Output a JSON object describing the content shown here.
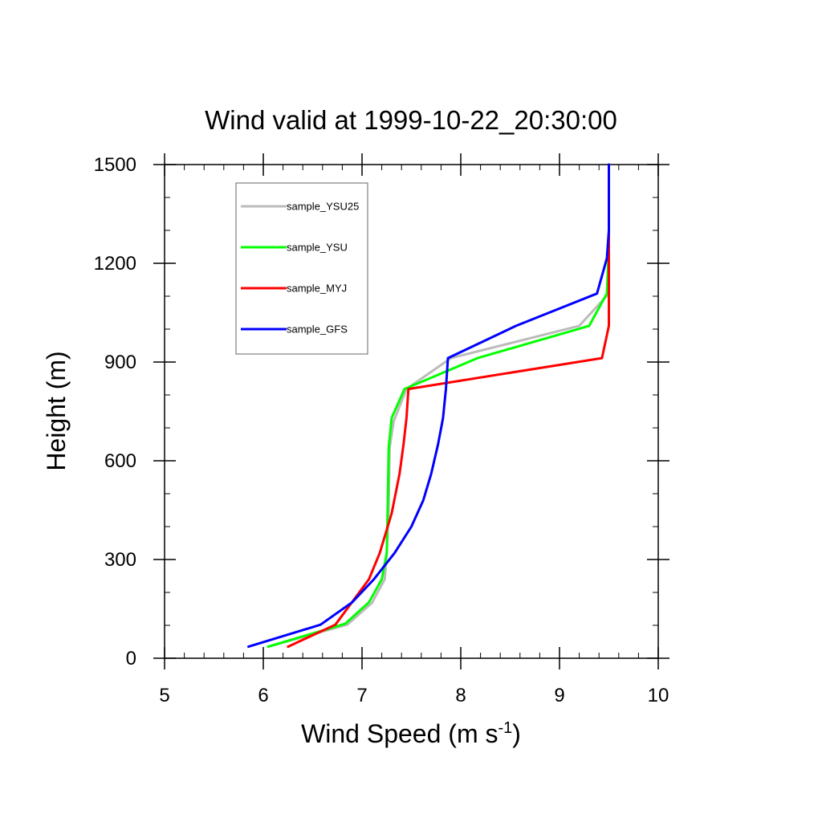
{
  "chart_data": {
    "type": "line",
    "title": "Wind valid at 1999-10-22_20:30:00",
    "xlabel": "Wind Speed (m s",
    "xlabel_superscript": "-1",
    "xlabel_suffix": ")",
    "ylabel": "Height (m)",
    "xlim": [
      5,
      10
    ],
    "ylim": [
      0,
      1500
    ],
    "xticks": [
      5,
      6,
      7,
      8,
      9,
      10
    ],
    "yticks": [
      0,
      300,
      600,
      900,
      1200,
      1500
    ],
    "x_minor_step": 0.2,
    "y_minor_step": 100,
    "grid": false,
    "legend_position": "top-left",
    "series": [
      {
        "name": "sample_YSU25",
        "color": "#bbbbbb",
        "points": [
          [
            6.05,
            35
          ],
          [
            6.85,
            102
          ],
          [
            7.1,
            168
          ],
          [
            7.23,
            240
          ],
          [
            7.25,
            320
          ],
          [
            7.27,
            460
          ],
          [
            7.28,
            640
          ],
          [
            7.32,
            720
          ],
          [
            7.45,
            818
          ],
          [
            7.9,
            912
          ],
          [
            9.2,
            1010
          ],
          [
            9.5,
            1108
          ],
          [
            9.5,
            1250
          ],
          [
            9.5,
            1500
          ]
        ]
      },
      {
        "name": "sample_YSU",
        "color": "#00ff00",
        "points": [
          [
            6.05,
            35
          ],
          [
            6.83,
            105
          ],
          [
            7.07,
            170
          ],
          [
            7.2,
            240
          ],
          [
            7.25,
            320
          ],
          [
            7.26,
            460
          ],
          [
            7.27,
            640
          ],
          [
            7.3,
            730
          ],
          [
            7.43,
            818
          ],
          [
            8.17,
            912
          ],
          [
            9.3,
            1010
          ],
          [
            9.48,
            1108
          ],
          [
            9.5,
            1250
          ],
          [
            9.5,
            1500
          ]
        ]
      },
      {
        "name": "sample_MYJ",
        "color": "#ff0000",
        "points": [
          [
            6.25,
            35
          ],
          [
            6.73,
            102
          ],
          [
            7.07,
            240
          ],
          [
            7.18,
            320
          ],
          [
            7.3,
            440
          ],
          [
            7.38,
            560
          ],
          [
            7.42,
            650
          ],
          [
            7.45,
            730
          ],
          [
            7.47,
            818
          ],
          [
            9.43,
            912
          ],
          [
            9.5,
            1010
          ],
          [
            9.5,
            1108
          ],
          [
            9.5,
            1500
          ]
        ]
      },
      {
        "name": "sample_GFS",
        "color": "#0000ff",
        "points": [
          [
            5.85,
            35
          ],
          [
            6.58,
            102
          ],
          [
            6.9,
            170
          ],
          [
            7.12,
            240
          ],
          [
            7.33,
            320
          ],
          [
            7.5,
            400
          ],
          [
            7.62,
            480
          ],
          [
            7.7,
            560
          ],
          [
            7.77,
            650
          ],
          [
            7.82,
            730
          ],
          [
            7.85,
            818
          ],
          [
            7.87,
            912
          ],
          [
            8.56,
            1010
          ],
          [
            9.38,
            1108
          ],
          [
            9.48,
            1215
          ],
          [
            9.5,
            1300
          ],
          [
            9.5,
            1500
          ]
        ]
      }
    ]
  }
}
